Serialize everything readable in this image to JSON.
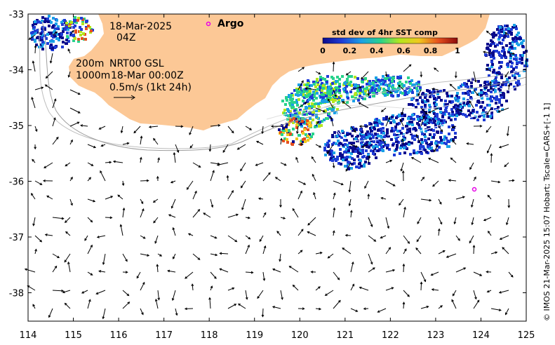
{
  "map": {
    "date": "18-Mar-2025",
    "hour": "04Z",
    "contours_label": "200m",
    "contours_label2": "1000m",
    "product": "NRT00 GSL",
    "product_time": "18-Mar 00:00Z",
    "scale_label": "0.5m/s (1kt 24h)",
    "argo_label": "Argo",
    "colorbar": {
      "title": "std dev of 4hr SST comp",
      "ticks": [
        "0",
        "0.2",
        "0.4",
        "0.6",
        "0.8",
        "1"
      ],
      "colors": [
        "#0a0a8c",
        "#1f3cd6",
        "#1aa0e6",
        "#28d28c",
        "#b4e61e",
        "#f0c81e",
        "#e6501e",
        "#8c0a0a"
      ]
    },
    "x_axis": {
      "ticks": [
        "114",
        "115",
        "116",
        "117",
        "118",
        "119",
        "120",
        "121",
        "122",
        "123",
        "124",
        "125"
      ]
    },
    "y_axis": {
      "ticks": [
        "-33",
        "-34",
        "-35",
        "-36",
        "-37",
        "-38"
      ]
    },
    "credit": "© IMOS 21-Mar-2025 15:07 Hobart; Tscale=CARS+[-1 1]",
    "colors": {
      "land": "#fcc896",
      "argo": "#e600e6"
    }
  }
}
